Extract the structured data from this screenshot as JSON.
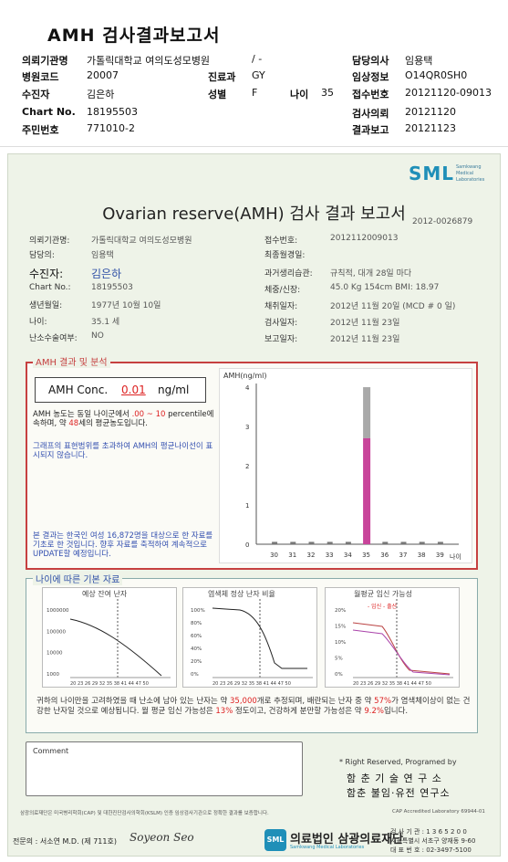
{
  "report_title": "AMH 검사결과보고서",
  "header": {
    "rows": [
      [
        {
          "l": "의뢰기관명",
          "v": "가톨릭대학교 여의도성모병원",
          "l2": "",
          "v2": "/ -",
          "l3": "",
          "v3": "",
          "l4": "담당의사",
          "v4": "임용택"
        }
      ],
      [
        {
          "l": "병원코드",
          "v": "20007",
          "l2": "진료과",
          "v2": "GY",
          "l3": "",
          "v3": "",
          "l4": "임상정보",
          "v4": "O14QR0SH0"
        }
      ],
      [
        {
          "l": "수진자",
          "v": "김은하",
          "l2": "성별",
          "v2": "F",
          "l3": "나이",
          "v3": "35",
          "l4": "접수번호",
          "v4": "20121120-09013"
        }
      ],
      [
        {
          "l": "Chart No.",
          "v": "18195503",
          "l2": "",
          "v2": "",
          "l3": "",
          "v3": "",
          "l4": "검사의뢰",
          "v4": "20121120"
        }
      ],
      [
        {
          "l": "주민번호",
          "v": "771010-2",
          "l2": "",
          "v2": "",
          "l3": "",
          "v3": "",
          "l4": "결과보고",
          "v4": "20121123"
        }
      ]
    ]
  },
  "form": {
    "logo": "SML",
    "logo_sub": "Samkwang Medical Laboratories",
    "title": "Ovarian reserve(AMH) 검사 결과 보고서",
    "doc_no": "2012-0026879",
    "left_fields": [
      {
        "label": "의뢰기관명:",
        "value": "가톨릭대학교 여의도성모병원"
      },
      {
        "label": "담당의:",
        "value": "임용택"
      },
      {
        "label": "수진자:",
        "value": "김은하"
      },
      {
        "label": "Chart No.:",
        "value": "18195503"
      },
      {
        "label": "생년월일:",
        "value": "1977년 10월 10일"
      },
      {
        "label": "나이:",
        "value": "35.1 세"
      },
      {
        "label": "난소수술여부:",
        "value": "NO"
      }
    ],
    "right_fields": [
      {
        "label": "접수번호:",
        "value": "2012112009013"
      },
      {
        "label": "최종월경일:",
        "value": ""
      },
      {
        "label": "과거생리습관:",
        "value": "규칙적, 대개  28일 마다"
      },
      {
        "label": "체중/신장:",
        "value": "45.0 Kg    154cm    BMI:  18.97"
      },
      {
        "label": "채취일자:",
        "value": "2012년 11월 20일  (MCD # 0 일)"
      },
      {
        "label": "검사일자:",
        "value": "2012년 11월 23일"
      },
      {
        "label": "보고일자:",
        "value": "2012년 11월 23일"
      }
    ]
  },
  "amh": {
    "section_title": "AMH 결과 및 분석",
    "conc_label": "AMH Conc.",
    "conc_value": "0.01",
    "conc_unit": "ng/ml",
    "text1a": "AMH 농도는 동일 나이군에서",
    "text1b": ".00 ~ 10",
    "text1c": "percentile에 속하며, 약",
    "text1d": "48",
    "text1e": "세의 평균농도입니다.",
    "note1": "그래프의 표현범위를 초과하여 AMH의 평균나이선이 표시되지 않습니다.",
    "note2": "본 결과는 한국인 여성 16,872명을 대상으로 한 자료를 기초로 한 것입니다. 향후 자료를 축적하여 계속적으로 UPDATE할 예정입니다."
  },
  "chart_data": {
    "type": "bar",
    "ylabel": "AMH(ng/ml)",
    "xlabel": "나이",
    "ylim": [
      0,
      4
    ],
    "yticks": [
      0,
      1,
      2,
      3,
      4
    ],
    "categories": [
      "30",
      "31",
      "32",
      "33",
      "34",
      "35",
      "36",
      "37",
      "38",
      "39"
    ],
    "highlight_category": "35",
    "bar_value": 2.7,
    "range_upper": 4.0,
    "series": [
      {
        "values": [
          0.06,
          0.06,
          0.06,
          0.06,
          0.06,
          2.7,
          0.06,
          0.06,
          0.06,
          0.06
        ]
      }
    ],
    "bar_color": "#c8449a",
    "range_color": "#a9a9a9"
  },
  "age": {
    "section_title": "나이에 따른 기본 자료",
    "chart1_title": "예상 잔여 난자",
    "chart1_yticks": [
      "1000000",
      "100000",
      "10000",
      "1000"
    ],
    "chart2_title": "염색체 정상 난자 비율",
    "chart2_yticks": [
      "100%",
      "80%",
      "60%",
      "40%",
      "20%",
      "0%"
    ],
    "chart3_title": "월평균 임신 가능성",
    "chart3_legend": "- 임신 - 출산",
    "chart3_yticks": [
      "20%",
      "15%",
      "10%",
      "5%",
      "0%"
    ],
    "x_ticks": "20 23 26 29 32 35 38 41 44 47 50",
    "text_a": "귀하의 나이만을 고려하였을 때 난소에 남아 있는 난자는 약",
    "text_b": "35,000",
    "text_c": "개로 추정되며, 배란되는 난자 중 약",
    "text_d": "57%",
    "text_e": "가 염색체이상이 없는 건강한 난자일 것으로 예상됩니다. 월 평균 임신 가능성은",
    "text_f": "13%",
    "text_g": "정도이고, 건강하게 분만할 가능성은 약",
    "text_h": "9.2%",
    "text_i": "입니다."
  },
  "comment": {
    "label": "Comment",
    "rights": "* Right Reserved, Programed by",
    "inst1": "함 춘 기 술 연 구 소",
    "inst2": "함춘 불임·유전 연구소"
  },
  "footer": {
    "note_left": "삼광의료재단은 미국병리학회(CAP) 및 대한진단검사의학회(KSLM) 인증 임상검사기관으로 정확한 결과를 보증합니다.",
    "note_right": "CAP Accredited Laboratory 69944-01",
    "signer": "전문의 : 서소연 M.D. (제 711호)",
    "signature": "Soyeon Seo",
    "org_logo": "SML",
    "org_name": "의료법인 삼광의료재단",
    "org_sub": "Samkwang Medical Laboratories",
    "contact1": "검 사 기 관 : 1 3 6 5 2 0 0",
    "contact2": "서울특별시 서초구 양재동 9-60",
    "contact3": "대 표 번 호 : 02-3497-5100"
  }
}
